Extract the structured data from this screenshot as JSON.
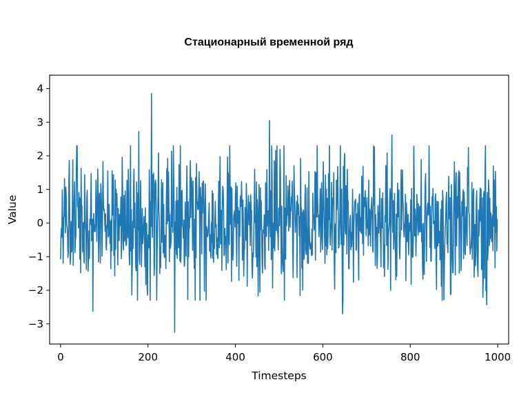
{
  "chart_data": {
    "type": "line",
    "title": "Стационарный временной ряд",
    "xlabel": "Timesteps",
    "ylabel": "Value",
    "xlim": [
      -25,
      1025
    ],
    "ylim": [
      -3.6,
      4.4
    ],
    "xticks": [
      0,
      200,
      400,
      600,
      800,
      1000
    ],
    "yticks": [
      -3,
      -2,
      -1,
      0,
      1,
      2,
      3,
      4
    ],
    "xtick_labels": [
      "0",
      "200",
      "400",
      "600",
      "800",
      "1000"
    ],
    "ytick_labels": [
      "−3",
      "−2",
      "−1",
      "0",
      "1",
      "2",
      "3",
      "4"
    ],
    "grid": false,
    "legend": "none",
    "color": "#1f77b4",
    "series": [
      {
        "n_points": 1000,
        "x_start": 0,
        "x_end": 999,
        "mean": 0,
        "std": 1,
        "min": -3.25,
        "max": 3.85,
        "notable_points": [
          {
            "x": 208,
            "y": 3.85
          },
          {
            "x": 261,
            "y": -3.25
          },
          {
            "x": 478,
            "y": 3.05
          },
          {
            "x": 179,
            "y": 2.72
          },
          {
            "x": 758,
            "y": 2.62
          },
          {
            "x": 74,
            "y": -2.62
          },
          {
            "x": 645,
            "y": -2.7
          },
          {
            "x": 975,
            "y": -2.43
          }
        ]
      }
    ]
  }
}
